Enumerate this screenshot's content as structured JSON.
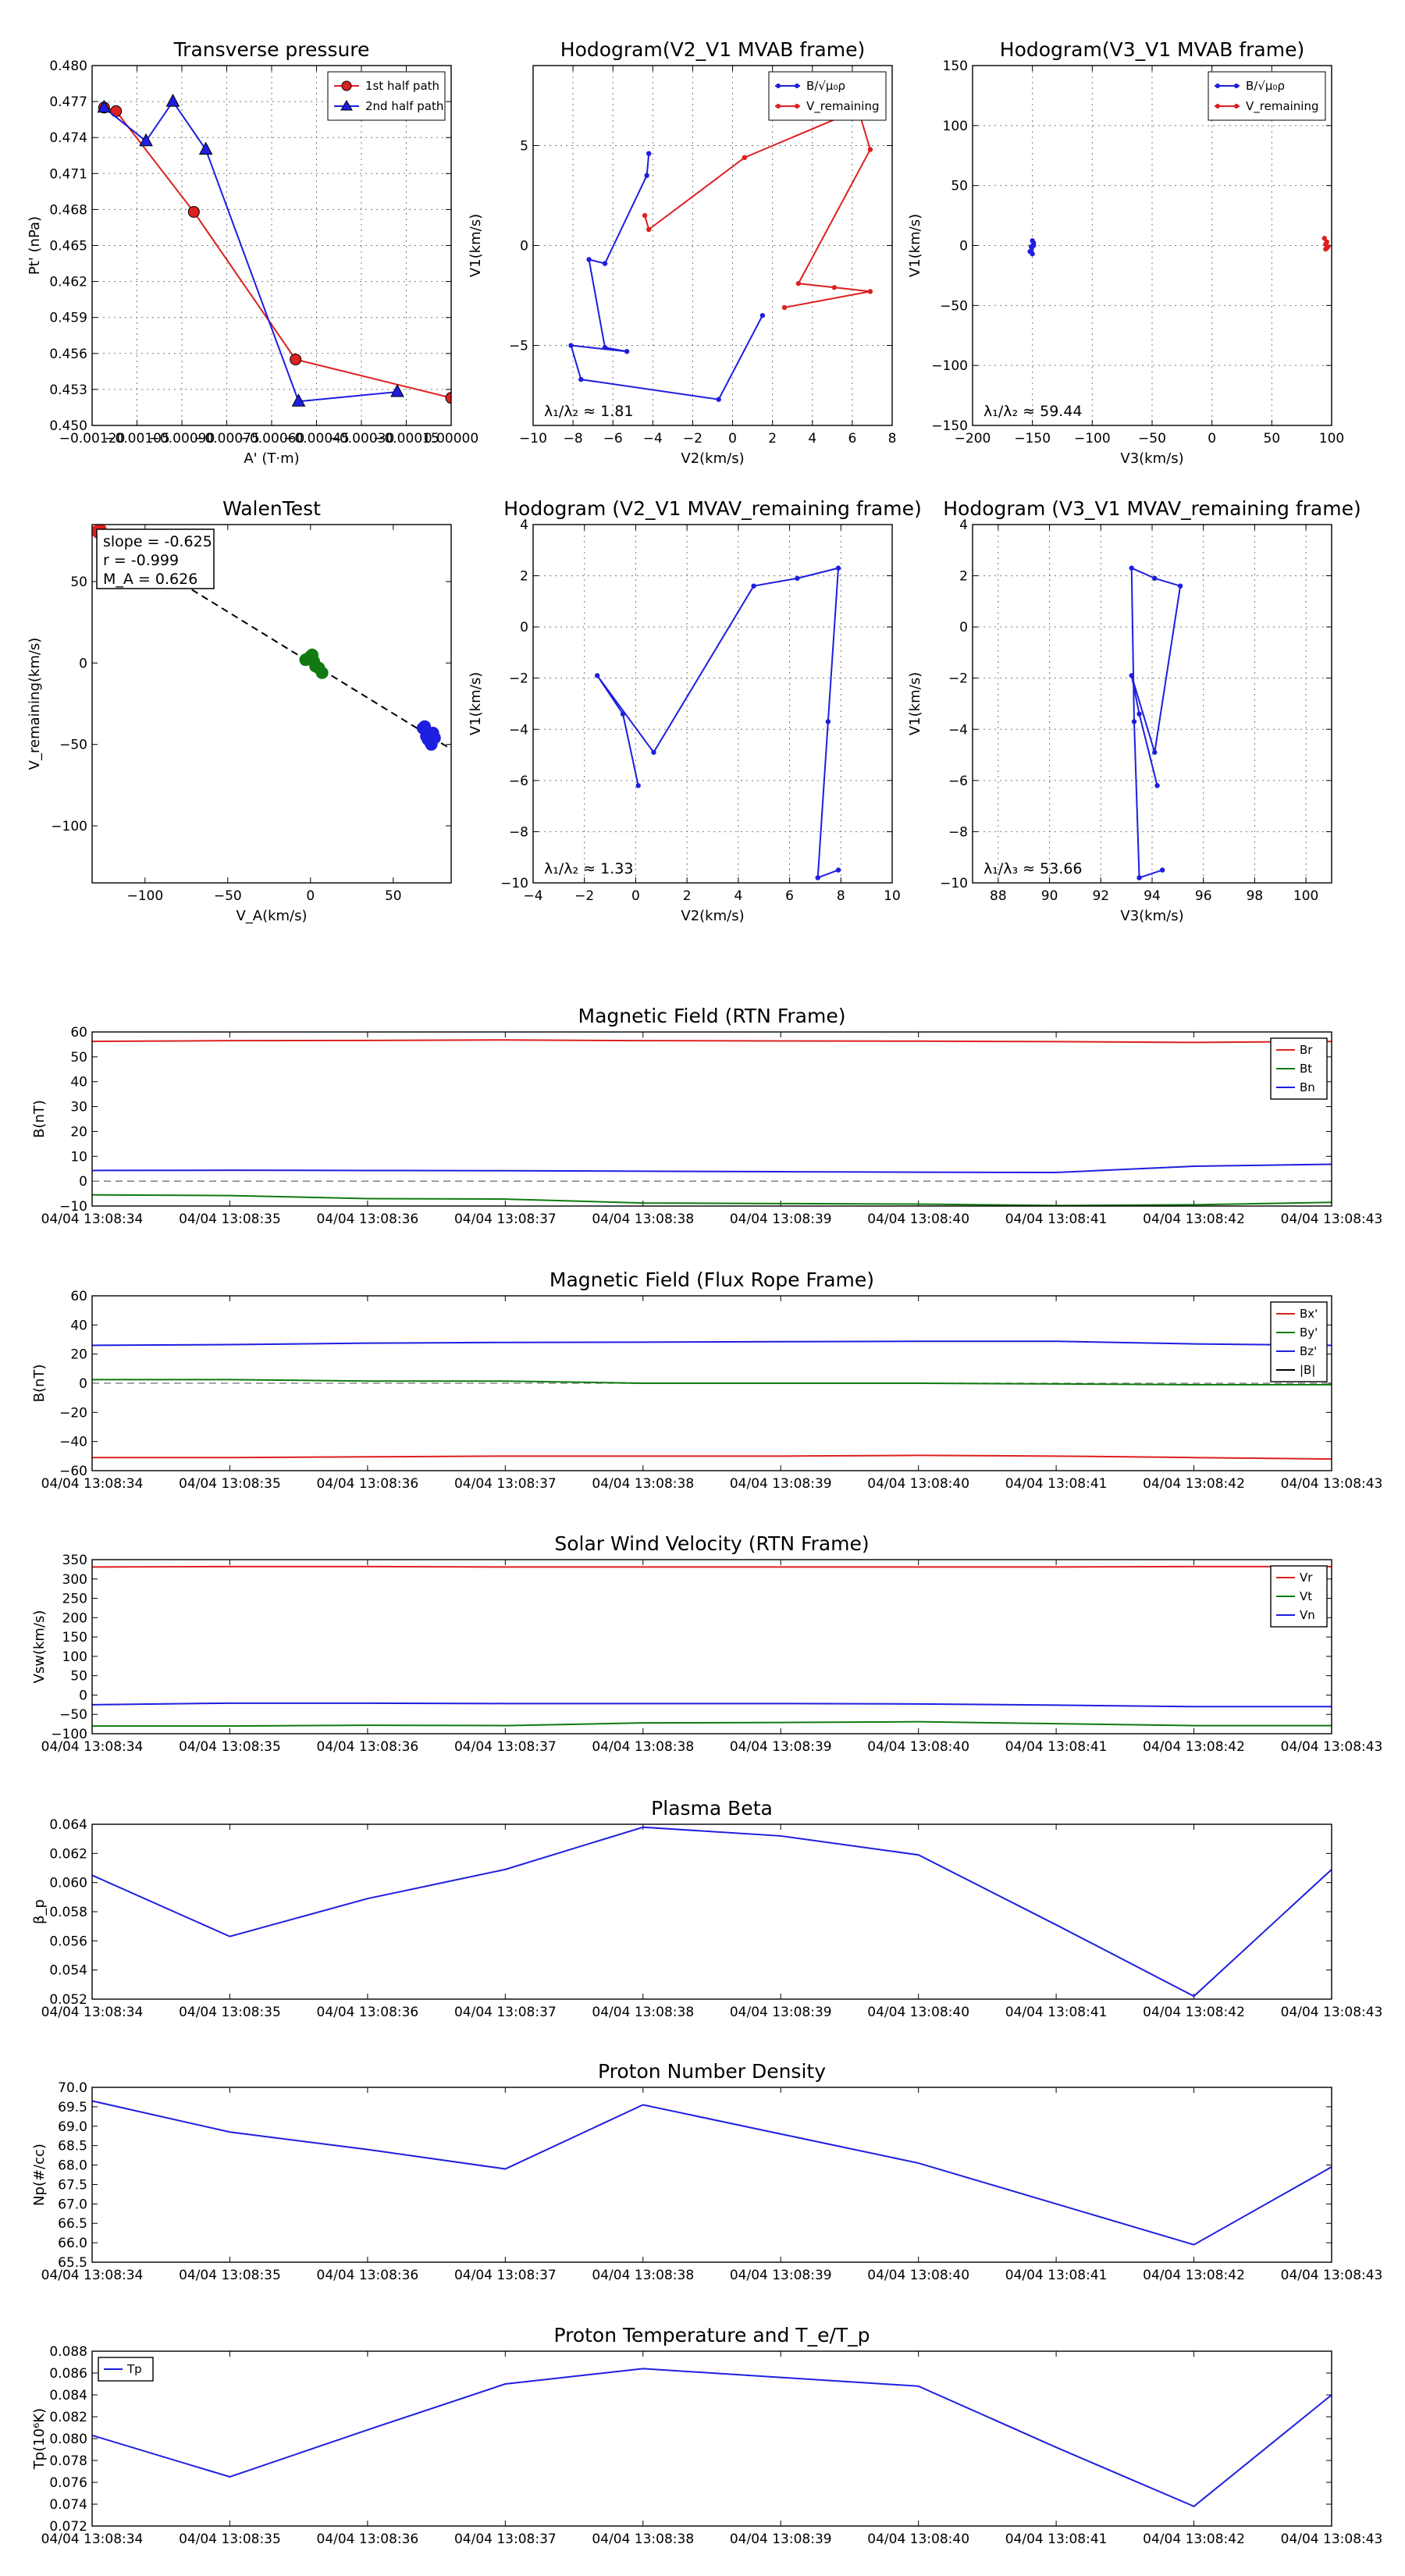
{
  "figure": {
    "background": "#ffffff",
    "grid_color": "#777777"
  },
  "colors": {
    "red": "#dd2020",
    "blue": "#1e1ee0",
    "green": "#107a10",
    "black": "#000000",
    "gray": "#888888"
  },
  "chart_data": [
    {
      "id": "transverse_pressure",
      "type": "line",
      "title": "Transverse pressure",
      "xlabel": "A' (T·m)",
      "ylabel": "Pt' (nPa)",
      "xlim": [
        -0.0012,
        0.0
      ],
      "ylim": [
        0.45,
        0.48
      ],
      "x_ticks": [
        -0.0012,
        -0.00105,
        -0.0009,
        -0.00075,
        -0.0006,
        -0.00045,
        -0.0003,
        -0.00015,
        0.0
      ],
      "x_tick_labels": [
        "−0.00120",
        "−0.00105",
        "−0.00090",
        "−0.00075",
        "−0.00060",
        "−0.00045",
        "−0.00030",
        "−0.00015",
        "0.00000"
      ],
      "y_ticks": [
        0.45,
        0.453,
        0.456,
        0.459,
        0.462,
        0.465,
        0.468,
        0.471,
        0.474,
        0.477,
        0.48
      ],
      "y_tick_labels": [
        "0.450",
        "0.453",
        "0.456",
        "0.459",
        "0.462",
        "0.465",
        "0.468",
        "0.471",
        "0.474",
        "0.477",
        "0.480"
      ],
      "grid": true,
      "legend": "upper right",
      "series": [
        {
          "name": "1st half path",
          "color": "red",
          "marker": "circle",
          "x": [
            -0.00116,
            -0.00112,
            -0.00086,
            -0.00052,
            0.0
          ],
          "y": [
            0.4765,
            0.4762,
            0.4678,
            0.4555,
            0.4523
          ]
        },
        {
          "name": "2nd half path",
          "color": "blue",
          "marker": "triangle",
          "x": [
            -0.00116,
            -0.00102,
            -0.00093,
            -0.00082,
            -0.00051,
            -0.00018
          ],
          "y": [
            0.4765,
            0.4737,
            0.477,
            0.473,
            0.452,
            0.4528
          ]
        }
      ]
    },
    {
      "id": "hodo_v2v1_mvab",
      "type": "line",
      "title": "Hodogram(V2_V1 MVAB frame)",
      "xlabel": "V2(km/s)",
      "ylabel": "V1(km/s)",
      "xlim": [
        -10,
        8
      ],
      "ylim": [
        -9,
        9
      ],
      "x_ticks": [
        -10,
        -8,
        -6,
        -4,
        -2,
        0,
        2,
        4,
        6,
        8
      ],
      "x_tick_labels": [
        "−10",
        "−8",
        "−6",
        "−4",
        "−2",
        "0",
        "2",
        "4",
        "6",
        "8"
      ],
      "y_ticks": [
        -5,
        0,
        5
      ],
      "y_tick_labels": [
        "−5",
        "0",
        "5"
      ],
      "grid": true,
      "legend": "upper right",
      "annotation": "λ₁/λ₂ ≈ 1.81",
      "series": [
        {
          "name": "B/√μ₀ρ",
          "color": "blue",
          "marker": "dot",
          "x": [
            -4.2,
            -4.3,
            -6.4,
            -7.2,
            -6.4,
            -5.3,
            -8.1,
            -7.6,
            -0.7,
            1.5
          ],
          "y": [
            4.6,
            3.5,
            -0.9,
            -0.7,
            -5.1,
            -5.3,
            -5.0,
            -6.7,
            -7.7,
            -3.5
          ]
        },
        {
          "name": "V_remaining",
          "color": "red",
          "marker": "dot",
          "x": [
            -4.4,
            -4.2,
            0.6,
            6.3,
            6.9,
            3.3,
            5.1,
            6.9,
            2.6
          ],
          "y": [
            1.5,
            0.8,
            4.4,
            6.8,
            4.8,
            -1.9,
            -2.1,
            -2.3,
            -3.1
          ]
        }
      ]
    },
    {
      "id": "hodo_v3v1_mvab",
      "type": "line",
      "title": "Hodogram(V3_V1 MVAB frame)",
      "xlabel": "V3(km/s)",
      "ylabel": "V1(km/s)",
      "xlim": [
        -200,
        100
      ],
      "ylim": [
        -150,
        150
      ],
      "x_ticks": [
        -200,
        -150,
        -100,
        -50,
        0,
        50,
        100
      ],
      "x_tick_labels": [
        "−200",
        "−150",
        "−100",
        "−50",
        "0",
        "50",
        "100"
      ],
      "y_ticks": [
        -150,
        -100,
        -50,
        0,
        50,
        100,
        150
      ],
      "y_tick_labels": [
        "−150",
        "−100",
        "−50",
        "0",
        "50",
        "100",
        "150"
      ],
      "grid": true,
      "legend": "upper right",
      "annotation": "λ₁/λ₂ ≈ 59.44",
      "series": [
        {
          "name": "B/√μ₀ρ",
          "color": "blue",
          "marker": "dot",
          "x": [
            -150,
            -149,
            -151,
            -152,
            -149,
            -150
          ],
          "y": [
            4,
            2,
            -1,
            -5,
            0,
            -7
          ]
        },
        {
          "name": "V_remaining",
          "color": "red",
          "marker": "dot",
          "x": [
            94,
            96,
            95,
            97,
            95,
            96
          ],
          "y": [
            6,
            3,
            1,
            -1,
            -3,
            -2
          ]
        }
      ]
    },
    {
      "id": "walen_test",
      "type": "scatter",
      "title": "WalenTest",
      "xlabel": "V_A(km/s)",
      "ylabel": "V_remaining(km/s)",
      "xlim": [
        -132,
        85
      ],
      "ylim": [
        -135,
        85
      ],
      "x_ticks": [
        -100,
        -50,
        0,
        50
      ],
      "x_tick_labels": [
        "−100",
        "−50",
        "0",
        "50"
      ],
      "y_ticks": [
        -100,
        -50,
        0,
        50
      ],
      "y_tick_labels": [
        "−100",
        "−50",
        "0",
        "50"
      ],
      "grid": false,
      "annotation_lines": [
        "slope = -0.625",
        "r = -0.999",
        "M_A = 0.626"
      ],
      "fit_line": {
        "slope": -0.625,
        "intercept": 0.2
      },
      "series": [
        {
          "name": "red",
          "color": "red",
          "x": [
            -128,
            -127,
            -129
          ],
          "y": [
            80,
            82,
            81
          ]
        },
        {
          "name": "green",
          "color": "green",
          "x": [
            -3,
            0,
            2,
            5,
            7,
            -1,
            1,
            3
          ],
          "y": [
            2,
            4,
            1,
            -3,
            -6,
            3,
            5,
            -2
          ]
        },
        {
          "name": "blue",
          "color": "blue",
          "x": [
            68,
            70,
            72,
            74,
            69,
            71,
            73,
            75,
            70
          ],
          "y": [
            -40,
            -45,
            -48,
            -43,
            -39,
            -47,
            -50,
            -46,
            -42
          ]
        }
      ]
    },
    {
      "id": "hodo_v2v1_mvav",
      "type": "line",
      "title": "Hodogram (V2_V1 MVAV_remaining frame)",
      "xlabel": "V2(km/s)",
      "ylabel": "V1(km/s)",
      "xlim": [
        -4,
        10
      ],
      "ylim": [
        -10,
        4
      ],
      "x_ticks": [
        -4,
        -2,
        0,
        2,
        4,
        6,
        8,
        10
      ],
      "x_tick_labels": [
        "−4",
        "−2",
        "0",
        "2",
        "4",
        "6",
        "8",
        "10"
      ],
      "y_ticks": [
        -10,
        -8,
        -6,
        -4,
        -2,
        0,
        2,
        4
      ],
      "y_tick_labels": [
        "−10",
        "−8",
        "−6",
        "−4",
        "−2",
        "0",
        "2",
        "4"
      ],
      "grid": true,
      "annotation": "λ₁/λ₂ ≈ 1.33",
      "series": [
        {
          "name": "B",
          "color": "blue",
          "marker": "dot",
          "x": [
            0.1,
            -0.5,
            -1.5,
            0.7,
            4.6,
            6.3,
            7.9,
            7.5,
            7.1,
            7.9
          ],
          "y": [
            -6.2,
            -3.4,
            -1.9,
            -4.9,
            1.6,
            1.9,
            2.3,
            -3.7,
            -9.8,
            -9.5
          ]
        }
      ]
    },
    {
      "id": "hodo_v3v1_mvav",
      "type": "line",
      "title": "Hodogram (V3_V1 MVAV_remaining frame)",
      "xlabel": "V3(km/s)",
      "ylabel": "V1(km/s)",
      "xlim": [
        87,
        101
      ],
      "ylim": [
        -10,
        4
      ],
      "x_ticks": [
        88,
        90,
        92,
        94,
        96,
        98,
        100
      ],
      "x_tick_labels": [
        "88",
        "90",
        "92",
        "94",
        "96",
        "98",
        "100"
      ],
      "y_ticks": [
        -10,
        -8,
        -6,
        -4,
        -2,
        0,
        2,
        4
      ],
      "y_tick_labels": [
        "−10",
        "−8",
        "−6",
        "−4",
        "−2",
        "0",
        "2",
        "4"
      ],
      "grid": true,
      "annotation": "λ₁/λ₃ ≈ 53.66",
      "series": [
        {
          "name": "B",
          "color": "blue",
          "marker": "dot",
          "x": [
            94.2,
            93.5,
            93.2,
            94.1,
            95.1,
            94.1,
            93.2,
            93.3,
            93.5,
            94.4
          ],
          "y": [
            -6.2,
            -3.4,
            -1.9,
            -4.9,
            1.6,
            1.9,
            2.3,
            -3.7,
            -9.8,
            -9.5
          ]
        }
      ]
    },
    {
      "id": "mag_rtn",
      "type": "line",
      "title": "Magnetic Field (RTN Frame)",
      "ylabel": "B(nT)",
      "ylim": [
        -10,
        60
      ],
      "y_ticks": [
        -10,
        0,
        10,
        20,
        30,
        40,
        50,
        60
      ],
      "y_tick_labels": [
        "−10",
        "0",
        "10",
        "20",
        "30",
        "40",
        "50",
        "60"
      ],
      "zero_line": true,
      "legend": "upper right",
      "series": [
        {
          "name": "Br",
          "color": "red",
          "values": [
            56.2,
            56.5,
            56.6,
            56.8,
            56.5,
            56.4,
            56.3,
            56.1,
            55.8,
            56.2
          ]
        },
        {
          "name": "Bt",
          "color": "green",
          "values": [
            -5.5,
            -5.8,
            -7.0,
            -7.2,
            -8.8,
            -9.0,
            -9.2,
            -9.8,
            -9.5,
            -8.5
          ]
        },
        {
          "name": "Bn",
          "color": "blue",
          "values": [
            4.3,
            4.4,
            4.3,
            4.2,
            4.0,
            3.8,
            3.6,
            3.5,
            6.0,
            6.8
          ]
        }
      ]
    },
    {
      "id": "mag_fr",
      "type": "line",
      "title": "Magnetic Field (Flux Rope Frame)",
      "ylabel": "B(nT)",
      "ylim": [
        -60,
        60
      ],
      "y_ticks": [
        -60,
        -40,
        -20,
        0,
        20,
        40,
        60
      ],
      "y_tick_labels": [
        "−60",
        "−40",
        "−20",
        "0",
        "20",
        "40",
        "60"
      ],
      "zero_line": true,
      "legend": "upper right",
      "series": [
        {
          "name": "Bx'",
          "color": "red",
          "values": [
            -51,
            -51,
            -50.5,
            -50,
            -50,
            -50,
            -49.5,
            -50,
            -51,
            -52
          ]
        },
        {
          "name": "By'",
          "color": "green",
          "values": [
            2.5,
            2.5,
            1.5,
            1.5,
            0.0,
            0.0,
            0.0,
            -0.5,
            -1.0,
            -1.0
          ]
        },
        {
          "name": "Bz'",
          "color": "blue",
          "values": [
            26,
            26.5,
            27.5,
            28,
            28.2,
            28.5,
            28.8,
            28.8,
            27,
            26
          ]
        },
        {
          "name": "|B|",
          "color": "black",
          "values": []
        }
      ]
    },
    {
      "id": "vsw_rtn",
      "type": "line",
      "title": "Solar Wind Velocity (RTN Frame)",
      "ylabel": "Vsw(km/s)",
      "ylim": [
        -100,
        350
      ],
      "y_ticks": [
        -100,
        -50,
        0,
        50,
        100,
        150,
        200,
        250,
        300,
        350
      ],
      "y_tick_labels": [
        "−100",
        "−50",
        "0",
        "50",
        "100",
        "150",
        "200",
        "250",
        "300",
        "350"
      ],
      "legend": "upper right",
      "series": [
        {
          "name": "Vr",
          "color": "red",
          "values": [
            331,
            332,
            332,
            331,
            331,
            331,
            331,
            331,
            332,
            332
          ]
        },
        {
          "name": "Vt",
          "color": "green",
          "values": [
            -80,
            -80,
            -78,
            -79,
            -72,
            -71,
            -69,
            -74,
            -79,
            -79
          ]
        },
        {
          "name": "Vn",
          "color": "blue",
          "values": [
            -25,
            -21,
            -21,
            -22,
            -22,
            -22,
            -23,
            -26,
            -30,
            -30
          ]
        }
      ]
    },
    {
      "id": "plasma_beta",
      "type": "line",
      "title": "Plasma Beta",
      "ylabel": "β_p",
      "ylim": [
        0.052,
        0.064
      ],
      "y_ticks": [
        0.052,
        0.054,
        0.056,
        0.058,
        0.06,
        0.062,
        0.064
      ],
      "y_tick_labels": [
        "0.052",
        "0.054",
        "0.056",
        "0.058",
        "0.060",
        "0.062",
        "0.064"
      ],
      "series": [
        {
          "name": "beta",
          "color": "blue",
          "values": [
            0.0605,
            0.0563,
            0.0589,
            0.0609,
            0.0638,
            0.0632,
            0.0619,
            0.0571,
            0.0522,
            0.0609
          ]
        }
      ]
    },
    {
      "id": "proton_density",
      "type": "line",
      "title": "Proton Number Density",
      "ylabel": "Np(#/cc)",
      "ylim": [
        65.5,
        70.0
      ],
      "y_ticks": [
        65.5,
        66.0,
        66.5,
        67.0,
        67.5,
        68.0,
        68.5,
        69.0,
        69.5,
        70.0
      ],
      "y_tick_labels": [
        "65.5",
        "66.0",
        "66.5",
        "67.0",
        "67.5",
        "68.0",
        "68.5",
        "69.0",
        "69.5",
        "70.0"
      ],
      "series": [
        {
          "name": "Np",
          "color": "blue",
          "values": [
            69.65,
            68.85,
            68.4,
            67.9,
            69.55,
            68.8,
            68.05,
            67.0,
            65.95,
            67.95
          ]
        }
      ]
    },
    {
      "id": "proton_temp",
      "type": "line",
      "title": "Proton Temperature and T_e/T_p",
      "ylabel": "Tp(10⁶K)",
      "ylim": [
        0.072,
        0.088
      ],
      "y_ticks": [
        0.072,
        0.074,
        0.076,
        0.078,
        0.08,
        0.082,
        0.084,
        0.086,
        0.088
      ],
      "y_tick_labels": [
        "0.072",
        "0.074",
        "0.076",
        "0.078",
        "0.080",
        "0.082",
        "0.084",
        "0.086",
        "0.088"
      ],
      "legend": "upper left",
      "series": [
        {
          "name": "Tp",
          "color": "blue",
          "values": [
            0.0803,
            0.0765,
            0.0808,
            0.085,
            0.0864,
            0.0856,
            0.0848,
            0.0792,
            0.0738,
            0.084
          ]
        }
      ]
    }
  ],
  "time_axis": {
    "tick_labels": [
      "04/04 13:08:34",
      "04/04 13:08:35",
      "04/04 13:08:36",
      "04/04 13:08:37",
      "04/04 13:08:38",
      "04/04 13:08:39",
      "04/04 13:08:40",
      "04/04 13:08:41",
      "04/04 13:08:42",
      "04/04 13:08:43"
    ]
  }
}
